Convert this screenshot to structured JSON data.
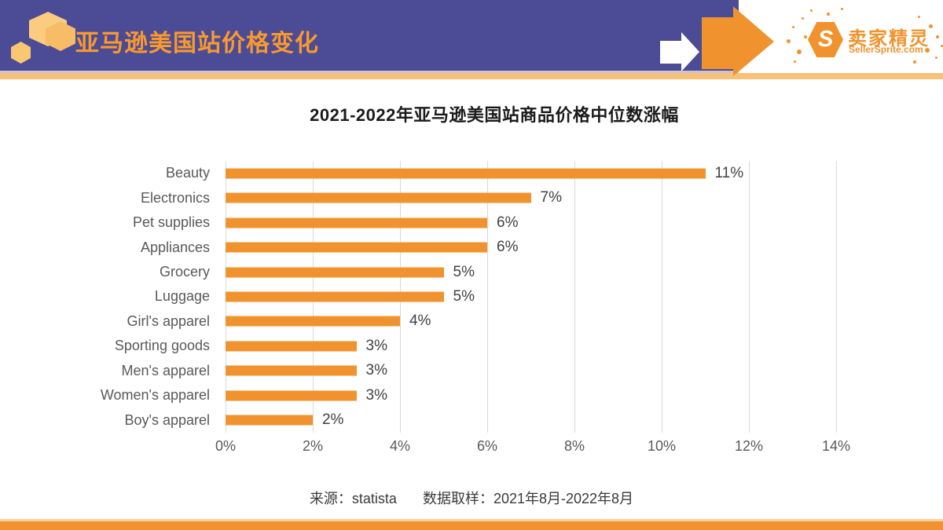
{
  "header": {
    "title": "亚马逊美国站价格变化",
    "brand": {
      "hex_letter": "S",
      "name_cn": "卖家精灵",
      "name_en": "SellerSprite.com"
    }
  },
  "colors": {
    "header_purple": "#4C4B96",
    "accent_orange": "#F0932E",
    "light_orange": "#F8C178",
    "grid_gray": "#D9D9D9",
    "label_gray": "#595959"
  },
  "chart_data": {
    "type": "bar",
    "orientation": "horizontal",
    "title": "2021-2022年亚马逊美国站商品价格中位数涨幅",
    "categories": [
      "Beauty",
      "Electronics",
      "Pet supplies",
      "Appliances",
      "Grocery",
      "Luggage",
      "Girl's apparel",
      "Sporting goods",
      "Men's apparel",
      "Women's apparel",
      "Boy's apparel"
    ],
    "values": [
      11,
      7,
      6,
      6,
      5,
      5,
      4,
      3,
      3,
      3,
      2
    ],
    "value_labels": [
      "11%",
      "7%",
      "6%",
      "6%",
      "5%",
      "5%",
      "4%",
      "3%",
      "3%",
      "3%",
      "2%"
    ],
    "x_ticks": [
      "0%",
      "2%",
      "4%",
      "6%",
      "8%",
      "10%",
      "12%",
      "14%"
    ],
    "xlim": [
      0,
      14
    ],
    "grid": true,
    "legend": false,
    "bar_color": "#F0932E"
  },
  "footer": {
    "source": "来源：statista",
    "sampling": "数据取样：2021年8月-2022年8月"
  }
}
